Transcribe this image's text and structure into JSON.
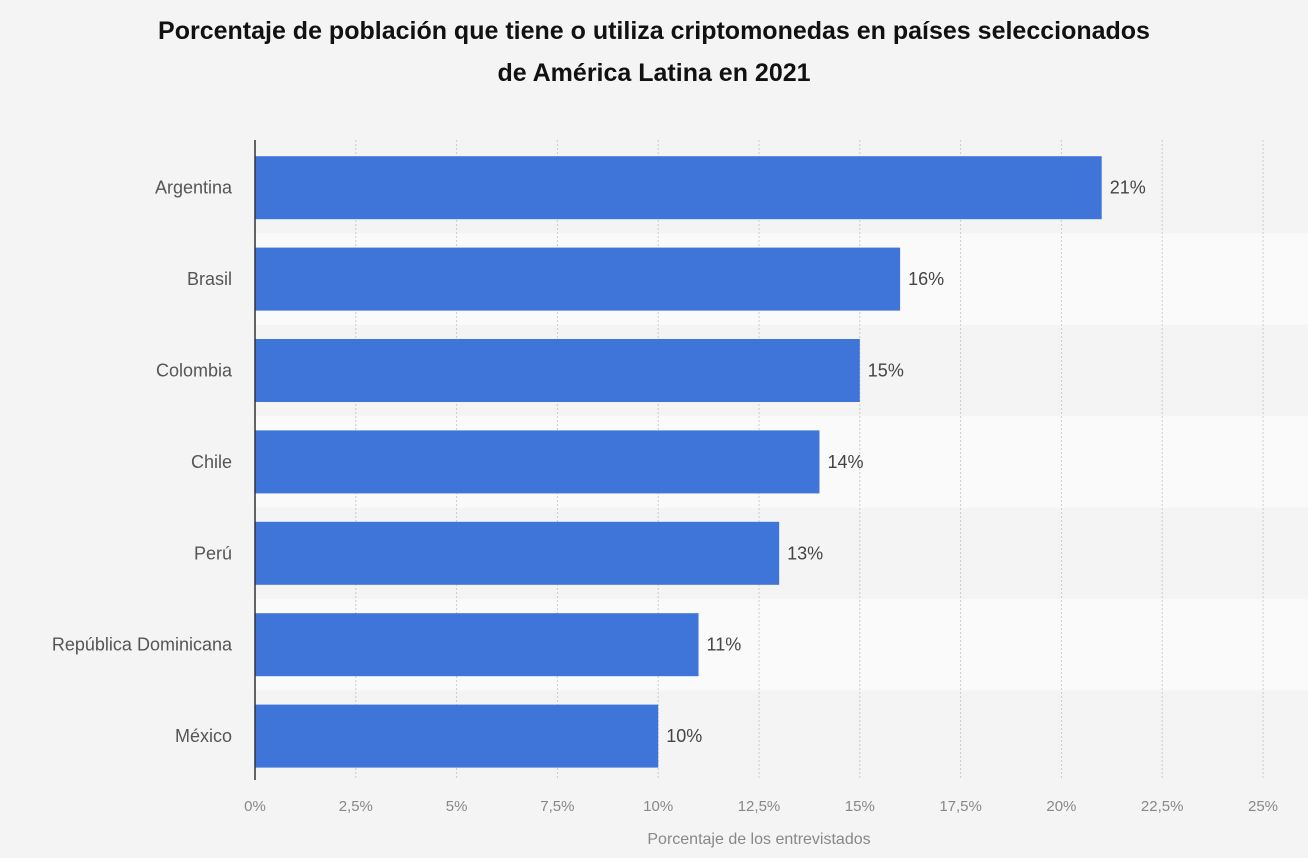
{
  "colors": {
    "bar": "#3f75d9",
    "background": "#f4f4f4",
    "band_alt": "#fafafa",
    "grid": "#cccccc",
    "axis": "#333333"
  },
  "chart_data": {
    "type": "bar",
    "orientation": "horizontal",
    "title": "Porcentaje de población que tiene o utiliza criptomonedas en países seleccionados de América Latina en 2021",
    "title_lines": [
      "Porcentaje de población que tiene o utiliza criptomonedas en países seleccionados",
      "de América Latina en 2021"
    ],
    "categories": [
      "Argentina",
      "Brasil",
      "Colombia",
      "Chile",
      "Perú",
      "República Dominicana",
      "México"
    ],
    "values": [
      21,
      16,
      15,
      14,
      13,
      11,
      10
    ],
    "value_labels": [
      "21%",
      "16%",
      "15%",
      "14%",
      "13%",
      "11%",
      "10%"
    ],
    "xlabel": "Porcentaje de los entrevistados",
    "ylabel": "",
    "xlim": [
      0,
      25
    ],
    "ticks": [
      0,
      2.5,
      5,
      7.5,
      10,
      12.5,
      15,
      17.5,
      20,
      22.5,
      25
    ],
    "tick_labels": [
      "0%",
      "2,5%",
      "5%",
      "7,5%",
      "10%",
      "12,5%",
      "15%",
      "17,5%",
      "20%",
      "22,5%",
      "25%"
    ],
    "grid": true,
    "legend": "none"
  }
}
